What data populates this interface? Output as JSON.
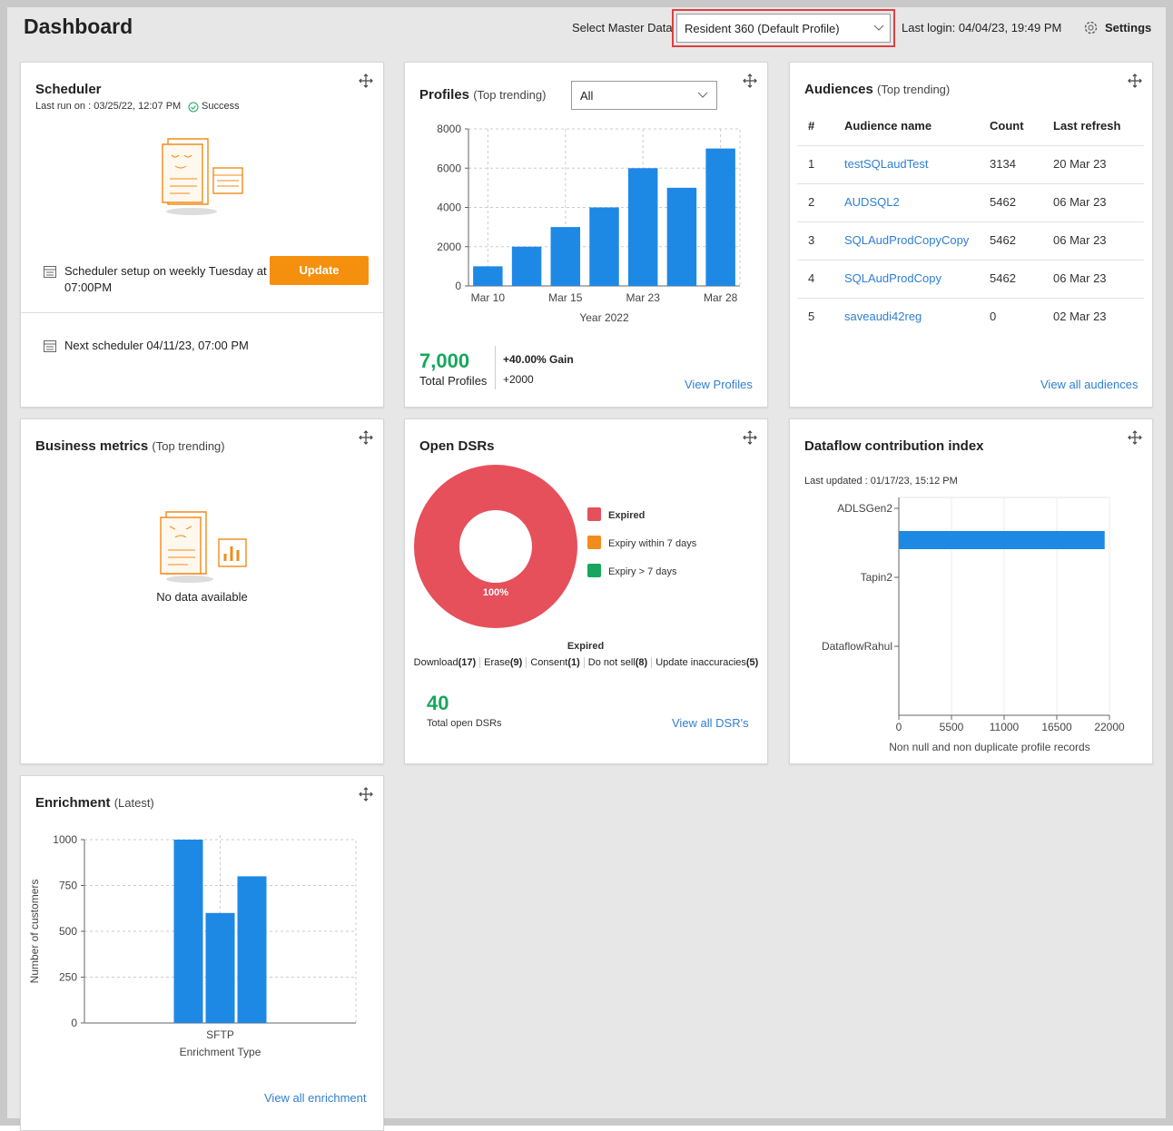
{
  "header": {
    "title": "Dashboard",
    "master_label": "Select Master Data",
    "master_value": "Resident 360 (Default Profile)",
    "last_login": "Last login: 04/04/23, 19:49 PM",
    "settings": "Settings"
  },
  "scheduler": {
    "title": "Scheduler",
    "last_run": "Last run on : 03/25/22, 12:07 PM",
    "status": "Success",
    "setup": "Scheduler setup on weekly Tuesday at 07:00PM",
    "button": "Update",
    "next": "Next scheduler 04/11/23, 07:00 PM"
  },
  "profiles": {
    "title": "Profiles",
    "subtitle": "(Top trending)",
    "filter": "All",
    "total": "7,000",
    "total_label": "Total Profiles",
    "gain": "+40.00% Gain",
    "delta": "+2000",
    "link": "View Profiles",
    "chart": {
      "type": "bar",
      "categories": [
        "Mar 10",
        null,
        "Mar 15",
        null,
        "Mar 23",
        null,
        "Mar 28"
      ],
      "values": [
        1000,
        2000,
        3000,
        4000,
        6000,
        5000,
        7000
      ],
      "color": "#1e88e5",
      "xlabel": "Year 2022",
      "ylim": [
        0,
        8000
      ],
      "yticks": [
        0,
        2000,
        4000,
        6000,
        8000
      ],
      "grid": true
    }
  },
  "audiences": {
    "title": "Audiences",
    "subtitle": "(Top trending)",
    "columns": [
      "#",
      "Audience name",
      "Count",
      "Last refresh"
    ],
    "rows": [
      [
        "1",
        "testSQLaudTest",
        "3134",
        "20 Mar 23"
      ],
      [
        "2",
        "AUDSQL2",
        "5462",
        "06 Mar 23"
      ],
      [
        "3",
        "SQLAudProdCopyCopy",
        "5462",
        "06 Mar 23"
      ],
      [
        "4",
        "SQLAudProdCopy",
        "5462",
        "06 Mar 23"
      ],
      [
        "5",
        "saveaudi42reg",
        "0",
        "02 Mar 23"
      ]
    ],
    "link": "View all audiences"
  },
  "business": {
    "title": "Business metrics",
    "subtitle": "(Top trending)",
    "empty": "No data available"
  },
  "dsr": {
    "title": "Open DSRs",
    "chart": {
      "type": "pie",
      "categories": [
        "Expired",
        "Expiry within 7 days",
        "Expiry > 7 days"
      ],
      "values": [
        100,
        0,
        0
      ],
      "value_labels": [
        "100%",
        null,
        null
      ],
      "colors": [
        "#e5505b",
        "#f28c1c",
        "#16a75c"
      ],
      "caption": "Expired"
    },
    "breakdown": [
      {
        "label": "Download",
        "count": "(17)"
      },
      {
        "label": "Erase",
        "count": "(9)"
      },
      {
        "label": "Consent",
        "count": "(1)"
      },
      {
        "label": "Do not sell",
        "count": "(8)"
      },
      {
        "label": "Update inaccuracies",
        "count": "(5)"
      }
    ],
    "total": "40",
    "total_label": "Total open DSRs",
    "link": "View all DSR's"
  },
  "dataflow": {
    "title": "Dataflow contribution index",
    "updated": "Last updated : 01/17/23, 15:12 PM",
    "chart": {
      "type": "hbar",
      "categories": [
        "ADLSGen2",
        "Tapin2",
        "DataflowRahul"
      ],
      "values": [
        21500,
        0,
        0
      ],
      "color": "#1e88e5",
      "xlabel": "Non null and non duplicate profile records",
      "xlim": [
        0,
        22000
      ],
      "xticks": [
        0,
        5500,
        11000,
        16500,
        22000
      ]
    }
  },
  "enrichment": {
    "title": "Enrichment",
    "subtitle": "(Latest)",
    "link": "View all enrichment",
    "chart": {
      "type": "grouped_bar",
      "categories": [
        "SFTP"
      ],
      "series": [
        {
          "color": "#1e88e5",
          "values": [
            1000
          ]
        },
        {
          "color": "#1e88e5",
          "values": [
            600
          ]
        },
        {
          "color": "#1e88e5",
          "values": [
            800
          ]
        }
      ],
      "xlabel": "Enrichment Type",
      "ylabel": "Number of customers",
      "ylim": [
        0,
        1000
      ],
      "yticks": [
        0,
        250,
        500,
        750,
        1000
      ],
      "grid": true
    }
  }
}
